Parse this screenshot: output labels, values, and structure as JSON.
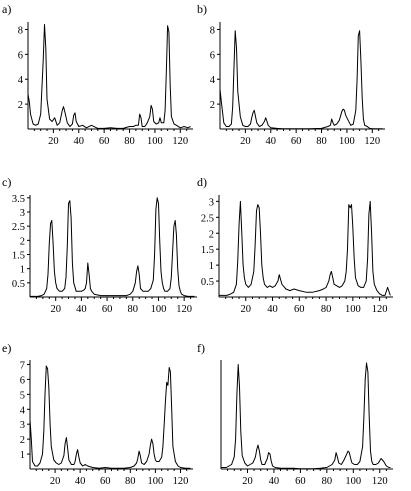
{
  "chart_data": [
    {
      "type": "line",
      "label": "a)",
      "xlim": [
        0,
        130
      ],
      "ylim": [
        0,
        8.6
      ],
      "xticks": [
        "20",
        "40",
        "60",
        "80",
        "100",
        "120"
      ],
      "yticks": [
        "2",
        "4",
        "6",
        "8"
      ],
      "x": [
        0,
        1,
        2,
        4,
        6,
        8,
        10,
        12,
        13,
        14,
        15,
        17,
        19,
        21,
        23,
        25,
        27,
        28,
        29,
        31,
        33,
        35,
        36,
        37,
        38,
        40,
        43,
        46,
        50,
        55,
        60,
        65,
        70,
        75,
        80,
        83,
        85,
        87,
        88,
        89,
        90,
        92,
        94,
        96,
        97,
        98,
        99,
        101,
        103,
        104,
        105,
        107,
        108,
        109,
        110,
        111,
        112,
        113,
        115,
        117,
        120,
        123,
        126,
        128
      ],
      "y": [
        2.8,
        2.2,
        1.2,
        0.4,
        0.3,
        0.4,
        1.2,
        5.5,
        8.4,
        6.5,
        2.4,
        0.8,
        0.6,
        0.9,
        0.3,
        0.5,
        1.5,
        1.8,
        1.4,
        0.5,
        0.2,
        0.4,
        1.1,
        1.3,
        0.6,
        0.2,
        0.3,
        0.1,
        0.3,
        0.05,
        0.05,
        0.1,
        0.05,
        0.05,
        0.2,
        0.2,
        0.3,
        0.3,
        1.2,
        0.9,
        0.2,
        0.2,
        0.5,
        1.0,
        1.9,
        1.6,
        0.6,
        0.4,
        0.5,
        0.9,
        0.5,
        0.5,
        1.5,
        4.5,
        8.3,
        7.8,
        3.5,
        1.0,
        0.4,
        0.3,
        0.1,
        0.2,
        0.1,
        0.2
      ]
    },
    {
      "type": "line",
      "label": "b)",
      "xlim": [
        0,
        130
      ],
      "ylim": [
        0,
        8.6
      ],
      "xticks": [
        "20",
        "40",
        "60",
        "80",
        "100",
        "120"
      ],
      "yticks": [
        "2",
        "4",
        "6",
        "8"
      ],
      "x": [
        0,
        1,
        3,
        5,
        7,
        9,
        10,
        11,
        12,
        13,
        14,
        16,
        18,
        20,
        22,
        24,
        25,
        26,
        27,
        28,
        29,
        31,
        33,
        35,
        36,
        37,
        38,
        40,
        45,
        50,
        60,
        70,
        80,
        85,
        87,
        88,
        89,
        90,
        92,
        94,
        96,
        97,
        98,
        99,
        101,
        103,
        105,
        107,
        108,
        109,
        110,
        111,
        112,
        113,
        114,
        116,
        118,
        120,
        124,
        128
      ],
      "y": [
        3.2,
        2.2,
        0.5,
        0.2,
        0.2,
        0.4,
        1.8,
        5.0,
        7.9,
        6.5,
        3.0,
        1.0,
        0.3,
        0.2,
        0.2,
        0.4,
        0.9,
        1.3,
        1.5,
        1.0,
        0.5,
        0.2,
        0.3,
        0.6,
        0.9,
        0.6,
        0.3,
        0.1,
        0.05,
        0.02,
        0.02,
        0.02,
        0.05,
        0.2,
        0.3,
        0.8,
        0.5,
        0.3,
        0.4,
        0.7,
        1.4,
        1.6,
        1.5,
        1.1,
        0.7,
        0.3,
        0.4,
        1.5,
        4.0,
        7.5,
        7.9,
        5.5,
        2.5,
        0.8,
        0.3,
        0.2,
        0.05,
        0.02,
        0.02,
        0.02
      ]
    },
    {
      "type": "line",
      "label": "c)",
      "xlim": [
        0,
        130
      ],
      "ylim": [
        0,
        3.6
      ],
      "xticks": [
        "20",
        "40",
        "60",
        "80",
        "100",
        "120"
      ],
      "yticks": [
        "0.5",
        "1",
        "1.5",
        "2",
        "2.5",
        "3",
        "3.5"
      ],
      "x": [
        0,
        3,
        6,
        9,
        11,
        13,
        14,
        15,
        16,
        17,
        18,
        19,
        20,
        21,
        23,
        25,
        27,
        28,
        29,
        30,
        31,
        32,
        33,
        34,
        36,
        38,
        40,
        42,
        43,
        44,
        45,
        46,
        47,
        48,
        50,
        55,
        60,
        65,
        70,
        75,
        78,
        80,
        82,
        83,
        84,
        85,
        86,
        88,
        90,
        92,
        94,
        96,
        97,
        98,
        99,
        100,
        101,
        102,
        103,
        104,
        105,
        107,
        109,
        110,
        111,
        112,
        113,
        114,
        115,
        116,
        117,
        118,
        120,
        123,
        126,
        128
      ],
      "y": [
        0.02,
        0.02,
        0.02,
        0.05,
        0.1,
        0.3,
        0.8,
        1.9,
        2.6,
        2.7,
        1.9,
        0.9,
        0.5,
        0.3,
        0.2,
        0.2,
        0.3,
        0.7,
        1.8,
        3.3,
        3.4,
        2.8,
        1.2,
        0.5,
        0.2,
        0.2,
        0.2,
        0.25,
        0.3,
        0.5,
        1.2,
        0.8,
        0.3,
        0.2,
        0.1,
        0.05,
        0.05,
        0.05,
        0.05,
        0.05,
        0.1,
        0.2,
        0.5,
        0.9,
        1.1,
        0.8,
        0.3,
        0.2,
        0.2,
        0.2,
        0.3,
        0.6,
        1.5,
        3.1,
        3.5,
        3.3,
        2.0,
        0.9,
        0.5,
        0.3,
        0.2,
        0.2,
        0.3,
        0.7,
        1.6,
        2.5,
        2.7,
        2.2,
        1.0,
        0.4,
        0.2,
        0.1,
        0.05,
        0.02,
        0.02,
        0.02
      ]
    },
    {
      "type": "line",
      "label": "d)",
      "xlim": [
        0,
        130
      ],
      "ylim": [
        0,
        3.2
      ],
      "xticks": [
        "20",
        "40",
        "60",
        "80",
        "100",
        "120"
      ],
      "yticks": [
        "0.5",
        "1",
        "1.5",
        "2",
        "2.5",
        "3"
      ],
      "x": [
        0,
        3,
        6,
        9,
        11,
        13,
        14,
        15,
        16,
        17,
        18,
        19,
        20,
        22,
        24,
        26,
        27,
        28,
        29,
        30,
        31,
        32,
        33,
        34,
        36,
        38,
        40,
        42,
        44,
        45,
        46,
        47,
        48,
        50,
        53,
        56,
        60,
        65,
        70,
        75,
        78,
        80,
        82,
        83,
        84,
        85,
        86,
        88,
        90,
        92,
        94,
        95,
        96,
        97,
        98,
        99,
        100,
        101,
        102,
        104,
        106,
        108,
        110,
        111,
        112,
        113,
        114,
        115,
        116,
        118,
        120,
        122,
        124,
        126,
        128
      ],
      "y": [
        0.05,
        0.05,
        0.05,
        0.1,
        0.15,
        0.4,
        1.1,
        2.3,
        3.0,
        2.0,
        1.0,
        0.6,
        0.4,
        0.3,
        0.4,
        0.8,
        1.6,
        2.7,
        2.9,
        2.8,
        2.0,
        1.0,
        0.6,
        0.4,
        0.3,
        0.35,
        0.3,
        0.35,
        0.5,
        0.7,
        0.55,
        0.4,
        0.35,
        0.25,
        0.2,
        0.25,
        0.2,
        0.15,
        0.15,
        0.2,
        0.25,
        0.3,
        0.5,
        0.7,
        0.8,
        0.6,
        0.4,
        0.35,
        0.3,
        0.35,
        0.5,
        0.8,
        1.5,
        2.9,
        2.8,
        2.9,
        2.2,
        1.2,
        0.6,
        0.35,
        0.3,
        0.3,
        0.5,
        1.2,
        2.6,
        3.0,
        2.0,
        0.8,
        0.4,
        0.2,
        0.1,
        0.05,
        0.05,
        0.3,
        0.05
      ]
    },
    {
      "type": "line",
      "label": "e)",
      "xlim": [
        0,
        130
      ],
      "ylim": [
        0,
        7.3
      ],
      "xticks": [
        "20",
        "40",
        "60",
        "80",
        "100",
        "120"
      ],
      "yticks": [
        "1",
        "2",
        "3",
        "4",
        "5",
        "6",
        "7"
      ],
      "x": [
        0,
        1,
        2,
        4,
        6,
        8,
        10,
        11,
        12,
        13,
        14,
        15,
        16,
        17,
        19,
        21,
        23,
        25,
        27,
        28,
        29,
        30,
        31,
        33,
        35,
        36,
        37,
        38,
        39,
        40,
        42,
        44,
        46,
        50,
        55,
        60,
        65,
        70,
        75,
        80,
        83,
        85,
        86,
        87,
        88,
        89,
        91,
        93,
        95,
        96,
        97,
        98,
        99,
        100,
        101,
        103,
        105,
        106,
        107,
        108,
        109,
        110,
        111,
        112,
        113,
        114,
        116,
        118,
        120,
        124,
        128
      ],
      "y": [
        3.3,
        2.0,
        0.5,
        0.2,
        0.2,
        0.4,
        1.0,
        2.5,
        5.0,
        6.9,
        6.7,
        5.5,
        3.0,
        1.5,
        0.6,
        0.4,
        0.3,
        0.4,
        0.9,
        1.7,
        2.1,
        1.4,
        0.6,
        0.3,
        0.3,
        0.5,
        1.0,
        1.3,
        0.8,
        0.4,
        0.2,
        0.3,
        0.2,
        0.1,
        0.05,
        0.1,
        0.05,
        0.05,
        0.05,
        0.1,
        0.2,
        0.4,
        0.7,
        1.2,
        0.9,
        0.4,
        0.3,
        0.5,
        1.0,
        1.6,
        2.0,
        1.7,
        1.0,
        0.6,
        0.5,
        0.5,
        0.8,
        1.5,
        3.0,
        4.5,
        5.8,
        5.6,
        6.8,
        6.5,
        4.0,
        1.5,
        0.5,
        0.2,
        0.1,
        0.05,
        0.05
      ]
    },
    {
      "type": "line",
      "label": "f)",
      "xlim": [
        0,
        130
      ],
      "ylim": [
        0,
        7.3
      ],
      "xticks": [
        "20",
        "40",
        "60",
        "80",
        "100",
        "120"
      ],
      "yticks": [],
      "x": [
        0,
        2,
        4,
        6,
        8,
        10,
        11,
        12,
        13,
        14,
        15,
        16,
        18,
        20,
        22,
        24,
        26,
        27,
        28,
        29,
        30,
        31,
        33,
        35,
        36,
        37,
        38,
        39,
        41,
        45,
        50,
        55,
        60,
        65,
        70,
        75,
        80,
        84,
        86,
        87,
        88,
        89,
        91,
        93,
        95,
        96,
        97,
        98,
        99,
        101,
        103,
        105,
        107,
        108,
        109,
        110,
        111,
        112,
        113,
        114,
        115,
        117,
        119,
        121,
        123,
        125,
        127,
        128
      ],
      "y": [
        0.1,
        0.1,
        0.1,
        0.2,
        0.3,
        0.8,
        2.0,
        5.0,
        7.0,
        5.5,
        2.5,
        0.9,
        0.4,
        0.2,
        0.3,
        0.4,
        0.8,
        1.3,
        1.6,
        1.2,
        0.6,
        0.3,
        0.3,
        0.7,
        1.1,
        1.0,
        0.5,
        0.2,
        0.1,
        0.05,
        0.05,
        0.05,
        0.02,
        0.02,
        0.02,
        0.05,
        0.1,
        0.3,
        0.6,
        1.1,
        0.8,
        0.4,
        0.3,
        0.6,
        1.0,
        1.2,
        1.1,
        0.7,
        0.4,
        0.3,
        0.3,
        0.5,
        1.5,
        3.5,
        6.0,
        7.1,
        6.5,
        3.5,
        1.2,
        0.5,
        0.3,
        0.3,
        0.4,
        0.7,
        0.5,
        0.2,
        0.1,
        0.1
      ]
    }
  ]
}
